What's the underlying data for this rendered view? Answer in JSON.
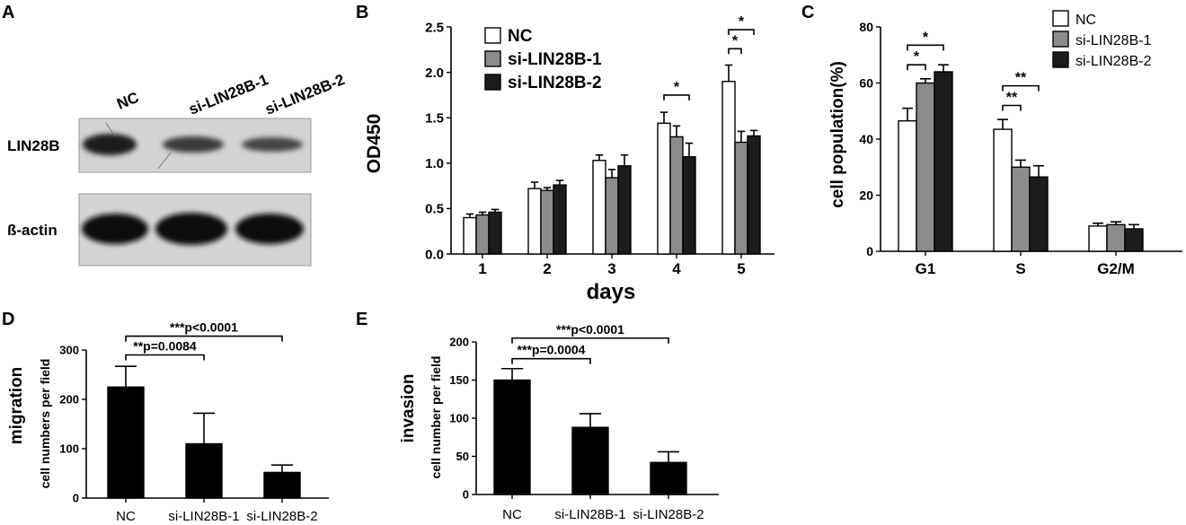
{
  "figure": {
    "panel_labels": [
      "A",
      "B",
      "C",
      "D",
      "E"
    ]
  },
  "blot": {
    "lanes": [
      "NC",
      "si-LIN28B-1",
      "si-LIN28B-2"
    ],
    "rows": [
      "LIN28B",
      "ß-actin"
    ]
  },
  "chart_data": [
    {
      "id": "B",
      "type": "bar",
      "title": "",
      "xlabel": "days",
      "ylabel": "OD450",
      "categories": [
        "1",
        "2",
        "3",
        "4",
        "5"
      ],
      "ylim": [
        0,
        2.5
      ],
      "yticks": [
        "0.0",
        "0.5",
        "1.0",
        "1.5",
        "2.0",
        "2.5"
      ],
      "legend": "top-left",
      "series": [
        {
          "name": "NC",
          "color": "#ffffff",
          "values": [
            0.4,
            0.72,
            1.03,
            1.44,
            1.9
          ],
          "errors": [
            0.04,
            0.07,
            0.06,
            0.12,
            0.18
          ]
        },
        {
          "name": "si-LIN28B-1",
          "color": "#8c8c8c",
          "values": [
            0.43,
            0.7,
            0.84,
            1.29,
            1.23
          ],
          "errors": [
            0.03,
            0.03,
            0.09,
            0.12,
            0.12
          ]
        },
        {
          "name": "si-LIN28B-2",
          "color": "#1c1c1c",
          "values": [
            0.46,
            0.76,
            0.97,
            1.07,
            1.3
          ],
          "errors": [
            0.03,
            0.05,
            0.12,
            0.15,
            0.06
          ]
        }
      ],
      "annotations": [
        {
          "text": "*",
          "category": 3,
          "from": 0,
          "to": 2,
          "y": 1.75
        },
        {
          "text": "*",
          "category": 4,
          "from": 0,
          "to": 1,
          "y": 2.26
        },
        {
          "text": "*",
          "category": 4,
          "from": 0,
          "to": 2,
          "y": 2.47
        }
      ]
    },
    {
      "id": "C",
      "type": "bar",
      "title": "",
      "xlabel": "",
      "ylabel": "cell population(%)",
      "categories": [
        "G1",
        "S",
        "G2/M"
      ],
      "ylim": [
        0,
        80
      ],
      "yticks": [
        "0",
        "20",
        "40",
        "60",
        "80"
      ],
      "legend": "top-right",
      "series": [
        {
          "name": "NC",
          "color": "#ffffff",
          "values": [
            46.5,
            43.5,
            9
          ],
          "errors": [
            4.5,
            3.5,
            1
          ]
        },
        {
          "name": "si-LIN28B-1",
          "color": "#8c8c8c",
          "values": [
            60,
            30,
            9.5
          ],
          "errors": [
            1.5,
            2.5,
            1
          ]
        },
        {
          "name": "si-LIN28B-2",
          "color": "#1c1c1c",
          "values": [
            64,
            26.5,
            8
          ],
          "errors": [
            2.5,
            4,
            1.5
          ]
        }
      ],
      "annotations": [
        {
          "text": "*",
          "category": 0,
          "from": 0,
          "to": 1,
          "y": 66.5
        },
        {
          "text": "*",
          "category": 0,
          "from": 0,
          "to": 2,
          "y": 73.5
        },
        {
          "text": "**",
          "category": 1,
          "from": 0,
          "to": 1,
          "y": 52
        },
        {
          "text": "**",
          "category": 1,
          "from": 0,
          "to": 2,
          "y": 59
        }
      ]
    },
    {
      "id": "D",
      "type": "bar",
      "title": "",
      "xlabel": "",
      "ylabel": "migration",
      "ylabel2": "cell numbers per field",
      "categories": [
        "NC",
        "si-LIN28B-1",
        "si-LIN28B-2"
      ],
      "ylim": [
        0,
        300
      ],
      "yticks": [
        "0",
        "100",
        "200",
        "300"
      ],
      "series": [
        {
          "color": "#000000",
          "values": [
            225,
            110,
            52
          ],
          "errors": [
            42,
            62,
            15
          ]
        }
      ],
      "annotations": [
        {
          "text": "**p=0.0084",
          "from": 0,
          "to": 1,
          "y": 290
        },
        {
          "text": "***p<0.0001",
          "from": 0,
          "to": 2,
          "y": 328
        }
      ]
    },
    {
      "id": "E",
      "type": "bar",
      "title": "",
      "xlabel": "",
      "ylabel": "invasion",
      "ylabel2": "cell number per field",
      "categories": [
        "NC",
        "si-LIN28B-1",
        "si-LIN28B-2"
      ],
      "ylim": [
        0,
        200
      ],
      "yticks": [
        "0",
        "50",
        "100",
        "150",
        "200"
      ],
      "series": [
        {
          "color": "#000000",
          "values": [
            150,
            88,
            42
          ],
          "errors": [
            15,
            18,
            14
          ]
        }
      ],
      "annotations": [
        {
          "text": "***p=0.0004",
          "from": 0,
          "to": 1,
          "y": 178
        },
        {
          "text": "***p<0.0001",
          "from": 0,
          "to": 2,
          "y": 205
        }
      ]
    }
  ]
}
